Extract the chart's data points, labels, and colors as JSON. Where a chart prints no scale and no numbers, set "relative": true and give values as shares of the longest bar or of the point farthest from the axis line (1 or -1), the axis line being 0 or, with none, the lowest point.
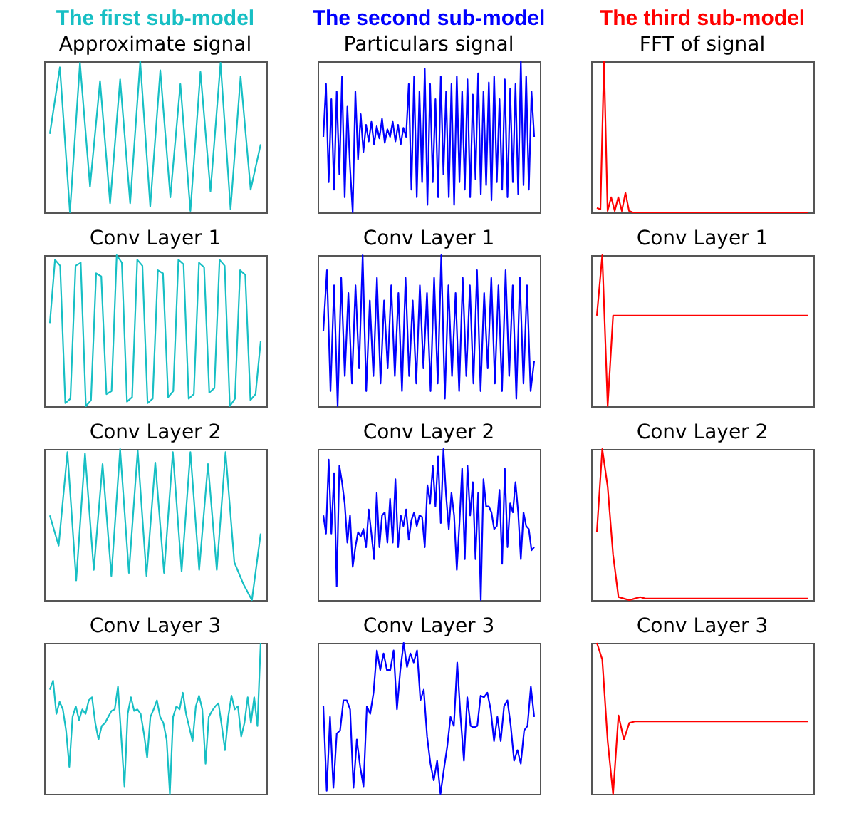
{
  "chart_data": [
    {
      "type": "line",
      "title": "The first sub-model",
      "subtitle": "Approximate signal",
      "relative": true,
      "line_style": "solid",
      "categories": [
        null,
        null,
        null,
        null,
        null,
        null,
        null,
        null,
        null,
        null,
        null,
        null,
        null,
        null,
        null,
        null,
        null,
        null,
        null,
        null,
        null,
        null
      ],
      "series": [
        {
          "color": "#17bfc4",
          "values": [
            0.52,
            0.96,
            0.0,
            0.99,
            0.17,
            0.87,
            0.06,
            0.88,
            0.06,
            1.0,
            0.04,
            0.94,
            0.1,
            0.85,
            0.01,
            0.93,
            0.14,
            0.99,
            0.02,
            0.9,
            0.15,
            0.45
          ]
        }
      ]
    },
    {
      "type": "line",
      "title": "The second sub-model",
      "subtitle": "Particulars signal",
      "relative": true,
      "line_style": "solid",
      "categories": [
        null,
        null,
        null,
        null,
        null,
        null,
        null,
        null,
        null,
        null,
        null,
        null,
        null,
        null,
        null,
        null,
        null,
        null,
        null,
        null,
        null,
        null,
        null,
        null,
        null,
        null,
        null,
        null,
        null,
        null,
        null,
        null,
        null,
        null,
        null,
        null,
        null,
        null,
        null,
        null,
        null,
        null,
        null,
        null,
        null,
        null,
        null,
        null,
        null,
        null,
        null,
        null,
        null,
        null,
        null,
        null,
        null,
        null,
        null,
        null,
        null,
        null,
        null,
        null,
        null,
        null,
        null,
        null,
        null,
        null,
        null,
        null,
        null,
        null,
        null,
        null,
        null,
        null,
        null,
        null
      ],
      "series": [
        {
          "color": "#0000ff",
          "values": [
            0.5,
            0.85,
            0.2,
            0.75,
            0.15,
            0.8,
            0.25,
            0.9,
            0.1,
            0.7,
            0.3,
            0.0,
            0.8,
            0.35,
            0.65,
            0.4,
            0.58,
            0.47,
            0.6,
            0.45,
            0.57,
            0.49,
            0.62,
            0.46,
            0.55,
            0.5,
            0.6,
            0.47,
            0.58,
            0.45,
            0.56,
            0.5,
            0.85,
            0.15,
            0.9,
            0.1,
            0.8,
            0.2,
            0.95,
            0.05,
            0.85,
            0.2,
            0.75,
            0.1,
            0.9,
            0.25,
            0.8,
            0.1,
            0.85,
            0.05,
            0.9,
            0.2,
            0.8,
            0.15,
            0.88,
            0.1,
            0.78,
            0.22,
            0.92,
            0.12,
            0.8,
            0.18,
            0.86,
            0.08,
            0.9,
            0.2,
            0.75,
            0.15,
            0.88,
            0.1,
            0.82,
            0.2,
            0.85,
            0.12,
            1.0,
            0.18,
            0.9,
            0.15,
            0.8,
            0.5
          ]
        }
      ]
    },
    {
      "type": "line",
      "title": "The third sub-model",
      "subtitle": "FFT of signal",
      "relative": true,
      "line_style": "solid",
      "categories": [
        null,
        null,
        null,
        null,
        null,
        null,
        null,
        null,
        null,
        null,
        null,
        null,
        null,
        null,
        null,
        null,
        null,
        null,
        null,
        null,
        null,
        null,
        null,
        null,
        null,
        null,
        null,
        null,
        null,
        null,
        null,
        null,
        null,
        null,
        null,
        null,
        null,
        null,
        null,
        null,
        null,
        null,
        null,
        null,
        null,
        null,
        null,
        null,
        null,
        null,
        null,
        null,
        null,
        null,
        null,
        null,
        null,
        null,
        null,
        null
      ],
      "series": [
        {
          "color": "#ff0000",
          "values": [
            0.03,
            0.02,
            1.0,
            0.01,
            0.1,
            0.01,
            0.1,
            0.01,
            0.13,
            0.01,
            0.0,
            0.0,
            0.0,
            0.0,
            0.0,
            0.0,
            0.0,
            0.0,
            0.0,
            0.0,
            0.0,
            0.0,
            0.0,
            0.0,
            0.0,
            0.0,
            0.0,
            0.0,
            0.0,
            0.0,
            0.0,
            0.0,
            0.0,
            0.0,
            0.0,
            0.0,
            0.0,
            0.0,
            0.0,
            0.0,
            0.0,
            0.0,
            0.0,
            0.0,
            0.0,
            0.0,
            0.0,
            0.0,
            0.0,
            0.0,
            0.0,
            0.0,
            0.0,
            0.0,
            0.0,
            0.0,
            0.0,
            0.0,
            0.0,
            0.0
          ]
        }
      ]
    },
    {
      "type": "line",
      "title": "Conv Layer 1",
      "relative": true,
      "line_style": "solid",
      "categories": [
        null,
        null,
        null,
        null,
        null,
        null,
        null,
        null,
        null,
        null,
        null,
        null,
        null,
        null,
        null,
        null,
        null,
        null,
        null,
        null,
        null,
        null,
        null,
        null,
        null,
        null,
        null,
        null,
        null,
        null,
        null,
        null,
        null,
        null,
        null,
        null,
        null,
        null,
        null,
        null,
        null,
        null
      ],
      "series": [
        {
          "color": "#17bfc4",
          "values": [
            0.55,
            0.97,
            0.93,
            0.02,
            0.05,
            0.93,
            0.95,
            0.0,
            0.04,
            0.88,
            0.86,
            0.08,
            0.1,
            1.0,
            0.95,
            0.03,
            0.06,
            0.97,
            0.93,
            0.02,
            0.05,
            0.9,
            0.88,
            0.06,
            0.1,
            0.97,
            0.94,
            0.05,
            0.08,
            0.95,
            0.92,
            0.09,
            0.12,
            0.97,
            0.93,
            0.0,
            0.05,
            0.9,
            0.87,
            0.04,
            0.08,
            0.43
          ]
        }
      ]
    },
    {
      "type": "line",
      "title": "Conv Layer 1",
      "relative": true,
      "line_style": "solid",
      "categories": [
        null,
        null,
        null,
        null,
        null,
        null,
        null,
        null,
        null,
        null,
        null,
        null,
        null,
        null,
        null,
        null,
        null,
        null,
        null,
        null,
        null,
        null,
        null,
        null,
        null,
        null,
        null,
        null,
        null,
        null,
        null,
        null,
        null,
        null,
        null,
        null,
        null,
        null,
        null,
        null,
        null,
        null,
        null,
        null,
        null,
        null,
        null,
        null,
        null,
        null,
        null,
        null,
        null,
        null,
        null,
        null,
        null,
        null,
        null,
        null
      ],
      "series": [
        {
          "color": "#0000ff",
          "values": [
            0.5,
            0.9,
            0.1,
            0.8,
            0.0,
            0.85,
            0.2,
            0.75,
            0.15,
            0.8,
            0.25,
            1.0,
            0.1,
            0.7,
            0.2,
            0.85,
            0.15,
            0.7,
            0.25,
            0.8,
            0.2,
            0.75,
            0.1,
            0.85,
            0.2,
            0.7,
            0.15,
            0.8,
            0.25,
            0.75,
            0.1,
            0.85,
            0.15,
            1.0,
            0.05,
            0.8,
            0.2,
            0.75,
            0.1,
            0.85,
            0.2,
            0.8,
            0.15,
            0.9,
            0.1,
            0.75,
            0.25,
            0.85,
            0.15,
            0.8,
            0.1,
            0.9,
            0.2,
            0.8,
            0.05,
            0.85,
            0.15,
            0.8,
            0.1,
            0.3
          ]
        }
      ]
    },
    {
      "type": "line",
      "title": "Conv Layer 1",
      "relative": true,
      "line_style": "solid",
      "categories": [
        null,
        null,
        null,
        null,
        null,
        null,
        null,
        null,
        null,
        null,
        null,
        null,
        null,
        null,
        null,
        null,
        null,
        null,
        null,
        null,
        null,
        null,
        null,
        null,
        null,
        null,
        null,
        null,
        null,
        null,
        null,
        null,
        null,
        null,
        null,
        null,
        null,
        null,
        null,
        null
      ],
      "series": [
        {
          "color": "#ff0000",
          "values": [
            0.6,
            1.0,
            0.0,
            0.6,
            0.6,
            0.6,
            0.6,
            0.6,
            0.6,
            0.6,
            0.6,
            0.6,
            0.6,
            0.6,
            0.6,
            0.6,
            0.6,
            0.6,
            0.6,
            0.6,
            0.6,
            0.6,
            0.6,
            0.6,
            0.6,
            0.6,
            0.6,
            0.6,
            0.6,
            0.6,
            0.6,
            0.6,
            0.6,
            0.6,
            0.6,
            0.6,
            0.6,
            0.6,
            0.6,
            0.6
          ]
        }
      ]
    },
    {
      "type": "line",
      "title": "Conv Layer 2",
      "relative": true,
      "line_style": "solid",
      "categories": [
        null,
        null,
        null,
        null,
        null,
        null,
        null,
        null,
        null,
        null,
        null,
        null,
        null,
        null,
        null,
        null,
        null,
        null,
        null,
        null,
        null,
        null,
        null,
        null,
        null
      ],
      "series": [
        {
          "color": "#17bfc4",
          "values": [
            0.56,
            0.36,
            0.98,
            0.13,
            0.97,
            0.2,
            0.9,
            0.16,
            1.0,
            0.18,
            0.99,
            0.16,
            0.91,
            0.18,
            0.98,
            0.19,
            0.98,
            0.2,
            0.9,
            0.2,
            0.98,
            0.25,
            0.11,
            0.0,
            0.44
          ]
        }
      ]
    },
    {
      "type": "line",
      "title": "Conv Layer 2",
      "relative": true,
      "line_style": "solid",
      "categories": [
        null,
        null,
        null,
        null,
        null,
        null,
        null,
        null,
        null,
        null,
        null,
        null,
        null,
        null,
        null,
        null,
        null,
        null,
        null,
        null,
        null,
        null,
        null,
        null,
        null,
        null,
        null,
        null,
        null,
        null,
        null,
        null,
        null,
        null,
        null,
        null,
        null,
        null,
        null,
        null,
        null,
        null,
        null,
        null,
        null,
        null,
        null,
        null,
        null,
        null,
        null,
        null,
        null,
        null,
        null,
        null,
        null,
        null,
        null,
        null,
        null,
        null,
        null,
        null,
        null,
        null,
        null,
        null,
        null,
        null,
        null,
        null,
        null,
        null,
        null,
        null,
        null,
        null,
        null,
        null
      ],
      "series": [
        {
          "color": "#0000ff",
          "values": [
            0.56,
            0.44,
            0.93,
            0.44,
            0.84,
            0.09,
            0.89,
            0.78,
            0.64,
            0.38,
            0.56,
            0.22,
            0.35,
            0.45,
            0.42,
            0.47,
            0.35,
            0.6,
            0.44,
            0.27,
            0.71,
            0.35,
            0.56,
            0.58,
            0.38,
            0.67,
            0.38,
            0.8,
            0.35,
            0.56,
            0.49,
            0.6,
            0.4,
            0.53,
            0.58,
            0.49,
            0.56,
            0.55,
            0.35,
            0.76,
            0.64,
            0.89,
            0.62,
            0.95,
            0.51,
            1.0,
            0.69,
            0.47,
            0.71,
            0.56,
            0.2,
            0.51,
            0.87,
            0.27,
            0.89,
            0.56,
            0.78,
            0.27,
            0.71,
            0.0,
            0.8,
            0.62,
            0.62,
            0.58,
            0.47,
            0.49,
            0.73,
            0.24,
            0.87,
            0.35,
            0.64,
            0.58,
            0.78,
            0.58,
            0.27,
            0.58,
            0.49,
            0.47,
            0.33,
            0.35
          ]
        }
      ]
    },
    {
      "type": "line",
      "title": "Conv Layer 2",
      "relative": true,
      "line_style": "solid",
      "categories": [
        null,
        null,
        null,
        null,
        null,
        null,
        null,
        null,
        null,
        null,
        null,
        null,
        null,
        null,
        null,
        null,
        null,
        null,
        null,
        null,
        null,
        null,
        null,
        null,
        null,
        null,
        null,
        null,
        null,
        null,
        null,
        null,
        null,
        null,
        null,
        null,
        null,
        null,
        null,
        null
      ],
      "series": [
        {
          "color": "#ff0000",
          "values": [
            0.45,
            1.0,
            0.75,
            0.3,
            0.02,
            0.01,
            0.0,
            0.01,
            0.02,
            0.01,
            0.01,
            0.01,
            0.01,
            0.01,
            0.01,
            0.01,
            0.01,
            0.01,
            0.01,
            0.01,
            0.01,
            0.01,
            0.01,
            0.01,
            0.01,
            0.01,
            0.01,
            0.01,
            0.01,
            0.01,
            0.01,
            0.01,
            0.01,
            0.01,
            0.01,
            0.01,
            0.01,
            0.01,
            0.01,
            0.01
          ]
        }
      ]
    },
    {
      "type": "line",
      "title": "Conv Layer 3",
      "relative": true,
      "line_style": "solid",
      "categories": [
        null,
        null,
        null,
        null,
        null,
        null,
        null,
        null,
        null,
        null,
        null,
        null,
        null,
        null,
        null,
        null,
        null,
        null,
        null,
        null,
        null,
        null,
        null,
        null,
        null,
        null,
        null,
        null,
        null,
        null,
        null,
        null,
        null,
        null,
        null,
        null,
        null,
        null,
        null,
        null,
        null,
        null,
        null,
        null,
        null,
        null,
        null,
        null,
        null,
        null,
        null,
        null,
        null,
        null,
        null,
        null,
        null,
        null,
        null,
        null,
        null,
        null,
        null,
        null,
        null,
        null
      ],
      "series": [
        {
          "color": "#17bfc4",
          "values": [
            0.69,
            0.75,
            0.53,
            0.61,
            0.56,
            0.42,
            0.18,
            0.51,
            0.58,
            0.49,
            0.56,
            0.53,
            0.62,
            0.64,
            0.47,
            0.36,
            0.45,
            0.47,
            0.51,
            0.55,
            0.56,
            0.71,
            0.38,
            0.05,
            0.53,
            0.64,
            0.55,
            0.56,
            0.53,
            0.4,
            0.24,
            0.51,
            0.56,
            0.62,
            0.51,
            0.47,
            0.36,
            0.0,
            0.51,
            0.58,
            0.56,
            0.67,
            0.53,
            0.44,
            0.35,
            0.58,
            0.65,
            0.56,
            0.2,
            0.51,
            0.55,
            0.58,
            0.6,
            0.45,
            0.29,
            0.51,
            0.65,
            0.56,
            0.58,
            0.38,
            0.47,
            0.64,
            0.47,
            0.64,
            0.45,
            1.0
          ]
        }
      ]
    },
    {
      "type": "line",
      "title": "Conv Layer 3",
      "relative": true,
      "line_style": "solid",
      "categories": [
        null,
        null,
        null,
        null,
        null,
        null,
        null,
        null,
        null,
        null,
        null,
        null,
        null,
        null,
        null,
        null,
        null,
        null,
        null,
        null,
        null,
        null,
        null,
        null,
        null,
        null,
        null,
        null,
        null,
        null,
        null,
        null,
        null,
        null,
        null,
        null,
        null,
        null,
        null,
        null,
        null,
        null,
        null,
        null,
        null,
        null,
        null,
        null,
        null,
        null,
        null,
        null,
        null,
        null,
        null,
        null,
        null,
        null,
        null,
        null,
        null,
        null,
        null,
        null
      ],
      "series": [
        {
          "color": "#0000ff",
          "values": [
            0.58,
            0.02,
            0.51,
            0.04,
            0.4,
            0.42,
            0.62,
            0.62,
            0.56,
            0.04,
            0.36,
            0.18,
            0.05,
            0.58,
            0.53,
            0.67,
            0.95,
            0.82,
            0.93,
            0.82,
            0.82,
            0.95,
            0.56,
            0.82,
            1.0,
            0.84,
            0.93,
            0.87,
            0.95,
            0.62,
            0.69,
            0.38,
            0.2,
            0.09,
            0.22,
            0.0,
            0.16,
            0.31,
            0.51,
            0.45,
            0.87,
            0.51,
            0.22,
            0.64,
            0.45,
            0.44,
            0.45,
            0.65,
            0.64,
            0.67,
            0.56,
            0.35,
            0.51,
            0.35,
            0.58,
            0.62,
            0.45,
            0.22,
            0.29,
            0.2,
            0.42,
            0.45,
            0.71,
            0.51
          ]
        }
      ]
    },
    {
      "type": "line",
      "title": "Conv Layer 3",
      "relative": true,
      "line_style": "solid",
      "categories": [
        null,
        null,
        null,
        null,
        null,
        null,
        null,
        null,
        null,
        null,
        null,
        null,
        null,
        null,
        null,
        null,
        null,
        null,
        null,
        null,
        null,
        null,
        null,
        null,
        null,
        null,
        null,
        null,
        null,
        null,
        null,
        null,
        null,
        null,
        null,
        null,
        null,
        null,
        null,
        null
      ],
      "series": [
        {
          "color": "#ff0000",
          "values": [
            1.0,
            0.89,
            0.35,
            0.0,
            0.52,
            0.36,
            0.47,
            0.48,
            0.48,
            0.48,
            0.48,
            0.48,
            0.48,
            0.48,
            0.48,
            0.48,
            0.48,
            0.48,
            0.48,
            0.48,
            0.48,
            0.48,
            0.48,
            0.48,
            0.48,
            0.48,
            0.48,
            0.48,
            0.48,
            0.48,
            0.48,
            0.48,
            0.48,
            0.48,
            0.48,
            0.48,
            0.48,
            0.48,
            0.48,
            0.48
          ]
        }
      ]
    }
  ]
}
